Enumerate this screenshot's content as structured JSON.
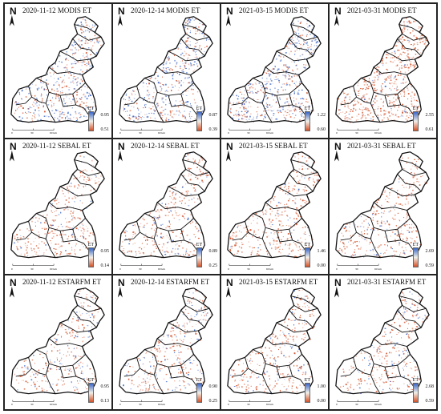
{
  "north_label": "N",
  "legend": {
    "title": "ET",
    "high_color": "#3a66c7",
    "mid_color": "#f2efe8",
    "low_color": "#d2522a"
  },
  "scale_bar": [
    "0",
    "30",
    "60 km"
  ],
  "panels": [
    {
      "title": "2020-11-12 MODIS ET",
      "max": "0.95",
      "min": "0.51",
      "blue_share": 0.55,
      "density": 0.85
    },
    {
      "title": "2020-12-14 MODIS ET",
      "max": "0.87",
      "min": "0.39",
      "blue_share": 0.6,
      "density": 0.8
    },
    {
      "title": "2021-03-15 MODIS ET",
      "max": "1.22",
      "min": "0.60",
      "blue_share": 0.55,
      "density": 0.9
    },
    {
      "title": "2021-03-31 MODIS ET",
      "max": "2.55",
      "min": "0.61",
      "blue_share": 0.1,
      "density": 0.95
    },
    {
      "title": "2020-11-12 SEBAL ET",
      "max": "0.95",
      "min": "0.14",
      "blue_share": 0.15,
      "density": 0.6
    },
    {
      "title": "2020-12-14 SEBAL ET",
      "max": "0.89",
      "min": "0.25",
      "blue_share": 0.2,
      "density": 0.6
    },
    {
      "title": "2021-03-15 SEBAL ET",
      "max": "1.46",
      "min": "0.00",
      "blue_share": 0.1,
      "density": 0.65
    },
    {
      "title": "2021-03-31 SEBAL ET",
      "max": "2.69",
      "min": "0.59",
      "blue_share": 0.12,
      "density": 0.6
    },
    {
      "title": "2020-11-12 ESTARFM ET",
      "max": "0.95",
      "min": "0.13",
      "blue_share": 0.3,
      "density": 0.55
    },
    {
      "title": "2020-12-14 ESTARFM ET",
      "max": "0.90",
      "min": "0.25",
      "blue_share": 0.3,
      "density": 0.6
    },
    {
      "title": "2021-03-15 ESTARFM ET",
      "max": "1.00",
      "min": "0.00",
      "blue_share": 0.2,
      "density": 0.6
    },
    {
      "title": "2021-03-31 ESTARFM ET",
      "max": "2.68",
      "min": "0.59",
      "blue_share": 0.2,
      "density": 0.55
    }
  ]
}
